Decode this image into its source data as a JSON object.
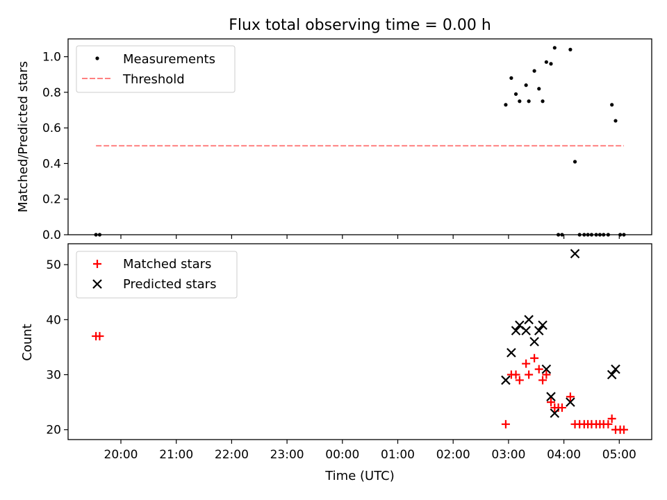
{
  "chart_data": [
    {
      "type": "scatter",
      "title": "Flux total observing time = 0.00 h",
      "ylabel": "Matched/Predicted stars",
      "xlabel": "",
      "ylim": [
        0,
        1.1
      ],
      "yticks": [
        "0.0",
        "0.2",
        "0.4",
        "0.6",
        "0.8",
        "1.0"
      ],
      "legend_position": "upper-left",
      "series": [
        {
          "name": "Measurements",
          "marker": "dot",
          "color": "#000000",
          "points": [
            [
              "19:33",
              0.0
            ],
            [
              "19:37",
              0.0
            ],
            [
              "02:57",
              0.73
            ],
            [
              "03:03",
              0.88
            ],
            [
              "03:08",
              0.79
            ],
            [
              "03:12",
              0.75
            ],
            [
              "03:19",
              0.84
            ],
            [
              "03:22",
              0.75
            ],
            [
              "03:28",
              0.92
            ],
            [
              "03:33",
              0.82
            ],
            [
              "03:37",
              0.75
            ],
            [
              "03:41",
              0.97
            ],
            [
              "03:46",
              0.96
            ],
            [
              "03:50",
              1.05
            ],
            [
              "03:54",
              0.0
            ],
            [
              "03:58",
              0.0
            ],
            [
              "04:07",
              1.04
            ],
            [
              "04:12",
              0.41
            ],
            [
              "04:17",
              0.0
            ],
            [
              "04:22",
              0.0
            ],
            [
              "04:26",
              0.0
            ],
            [
              "04:30",
              0.0
            ],
            [
              "04:35",
              0.0
            ],
            [
              "04:39",
              0.0
            ],
            [
              "04:43",
              0.0
            ],
            [
              "04:48",
              0.0
            ],
            [
              "04:52",
              0.73
            ],
            [
              "04:56",
              0.64
            ],
            [
              "05:01",
              0.0
            ],
            [
              "05:05",
              0.0
            ]
          ]
        },
        {
          "name": "Threshold",
          "marker": "dashed-line",
          "color": "#ff8080",
          "points": [
            [
              "19:33",
              0.5
            ],
            [
              "05:05",
              0.5
            ]
          ]
        }
      ]
    },
    {
      "type": "scatter",
      "title": "",
      "ylabel": "Count",
      "xlabel": "Time (UTC)",
      "ylim": [
        18.2,
        53.8
      ],
      "yticks": [
        "20",
        "30",
        "40",
        "50"
      ],
      "xticks": [
        "20:00",
        "21:00",
        "22:00",
        "23:00",
        "00:00",
        "01:00",
        "02:00",
        "03:00",
        "04:00",
        "05:00"
      ],
      "legend_position": "upper-left",
      "series": [
        {
          "name": "Matched stars",
          "marker": "plus",
          "color": "#ff0000",
          "points": [
            [
              "19:33",
              37
            ],
            [
              "19:37",
              37
            ],
            [
              "02:57",
              21
            ],
            [
              "03:03",
              30
            ],
            [
              "03:08",
              30
            ],
            [
              "03:12",
              29
            ],
            [
              "03:19",
              32
            ],
            [
              "03:22",
              30
            ],
            [
              "03:28",
              33
            ],
            [
              "03:33",
              31
            ],
            [
              "03:37",
              29
            ],
            [
              "03:41",
              30
            ],
            [
              "03:46",
              25
            ],
            [
              "03:50",
              24
            ],
            [
              "03:54",
              24
            ],
            [
              "03:58",
              24
            ],
            [
              "04:07",
              26
            ],
            [
              "04:12",
              21
            ],
            [
              "04:17",
              21
            ],
            [
              "04:22",
              21
            ],
            [
              "04:26",
              21
            ],
            [
              "04:30",
              21
            ],
            [
              "04:35",
              21
            ],
            [
              "04:39",
              21
            ],
            [
              "04:43",
              21
            ],
            [
              "04:48",
              21
            ],
            [
              "04:52",
              22
            ],
            [
              "04:56",
              20
            ],
            [
              "05:01",
              20
            ],
            [
              "05:05",
              20
            ]
          ]
        },
        {
          "name": "Predicted stars",
          "marker": "x",
          "color": "#000000",
          "points": [
            [
              "02:57",
              29
            ],
            [
              "03:03",
              34
            ],
            [
              "03:08",
              38
            ],
            [
              "03:12",
              39
            ],
            [
              "03:19",
              38
            ],
            [
              "03:22",
              40
            ],
            [
              "03:28",
              36
            ],
            [
              "03:33",
              38
            ],
            [
              "03:37",
              39
            ],
            [
              "03:41",
              31
            ],
            [
              "03:46",
              26
            ],
            [
              "03:50",
              23
            ],
            [
              "04:07",
              25
            ],
            [
              "04:12",
              52
            ],
            [
              "04:52",
              30
            ],
            [
              "04:56",
              31
            ]
          ]
        }
      ]
    }
  ]
}
